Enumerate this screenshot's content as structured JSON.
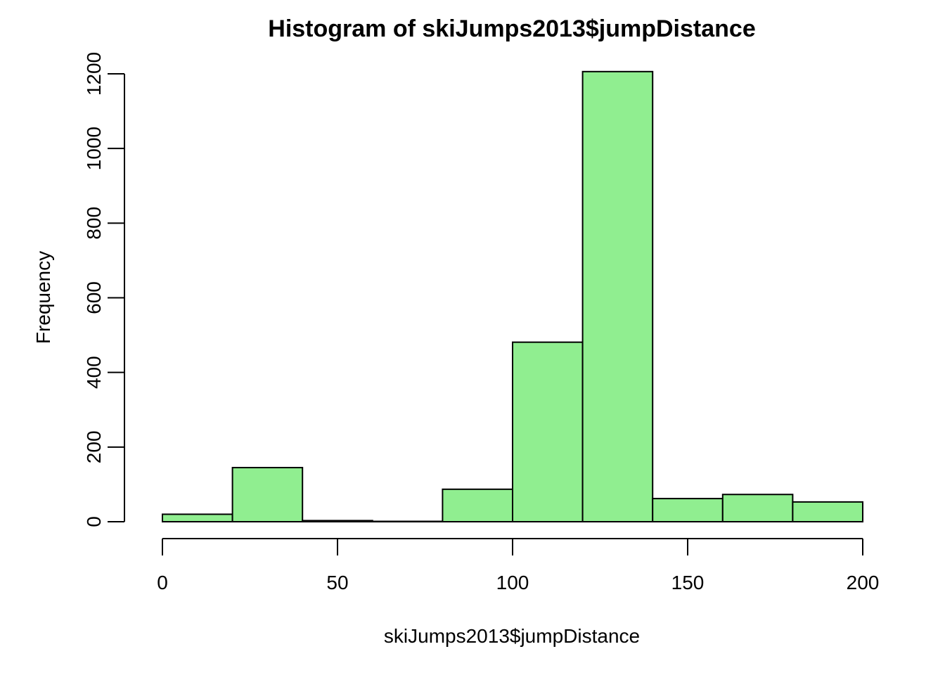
{
  "chart_data": {
    "type": "bar",
    "title": "Histogram of skiJumps2013$jumpDistance",
    "xlabel": "skiJumps2013$jumpDistance",
    "ylabel": "Frequency",
    "bins": [
      {
        "start": 0,
        "end": 20,
        "value": 20
      },
      {
        "start": 20,
        "end": 40,
        "value": 145
      },
      {
        "start": 40,
        "end": 60,
        "value": 3
      },
      {
        "start": 60,
        "end": 80,
        "value": 1
      },
      {
        "start": 80,
        "end": 100,
        "value": 87
      },
      {
        "start": 100,
        "end": 120,
        "value": 481
      },
      {
        "start": 120,
        "end": 140,
        "value": 1206
      },
      {
        "start": 140,
        "end": 160,
        "value": 62
      },
      {
        "start": 160,
        "end": 180,
        "value": 73
      },
      {
        "start": 180,
        "end": 200,
        "value": 53
      }
    ],
    "xlim": [
      0,
      200
    ],
    "ylim": [
      0,
      1200
    ],
    "x_ticks": [
      0,
      50,
      100,
      150,
      200
    ],
    "y_ticks": [
      0,
      200,
      400,
      600,
      800,
      1000,
      1200
    ],
    "grid": false,
    "bar_color": "#90EE90",
    "edge_color": "#000000"
  }
}
